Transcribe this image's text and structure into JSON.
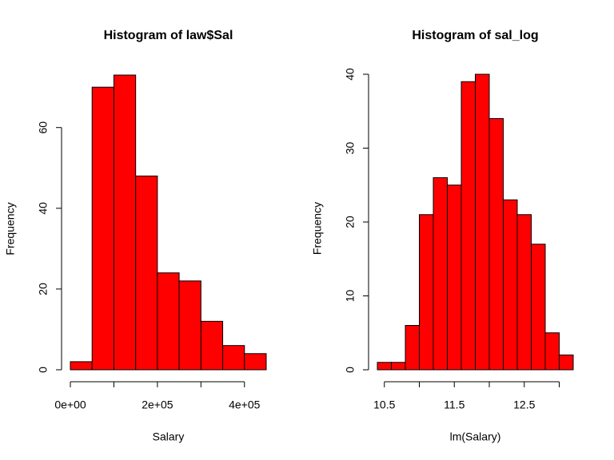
{
  "chart_data": [
    {
      "type": "histogram",
      "title": "Histogram of law$Sal",
      "xlabel": "Salary",
      "ylabel": "Frequency",
      "bins": [
        0,
        50000,
        100000,
        150000,
        200000,
        250000,
        300000,
        350000,
        400000,
        450000
      ],
      "values": [
        2,
        70,
        73,
        48,
        24,
        22,
        12,
        6,
        4
      ],
      "color": "#ff0000",
      "xlim": [
        0,
        450000
      ],
      "ylim": [
        0,
        73
      ],
      "xticks": [
        {
          "value": 0,
          "label": "0e+00"
        },
        {
          "value": 100000,
          "label": null
        },
        {
          "value": 200000,
          "label": "2e+05"
        },
        {
          "value": 300000,
          "label": null
        },
        {
          "value": 400000,
          "label": "4e+05"
        }
      ],
      "yticks": [
        0,
        20,
        40,
        60
      ]
    },
    {
      "type": "histogram",
      "title": "Histogram of sal_log",
      "xlabel": "lm(Salary)",
      "ylabel": "Frequency",
      "bins": [
        10.4,
        10.6,
        10.8,
        11.0,
        11.2,
        11.4,
        11.6,
        11.8,
        12.0,
        12.2,
        12.4,
        12.6,
        12.8,
        13.0,
        13.2
      ],
      "values": [
        1,
        1,
        6,
        21,
        26,
        25,
        39,
        40,
        34,
        23,
        21,
        17,
        5,
        2
      ],
      "color": "#ff0000",
      "xlim": [
        10.4,
        13.2
      ],
      "ylim": [
        0,
        40
      ],
      "xticks": [
        10.5,
        {
          "value": 11,
          "label": null
        },
        11.5,
        {
          "value": 12,
          "label": null
        },
        12.5,
        {
          "value": 13,
          "label": null
        }
      ],
      "yticks": [
        0,
        10,
        20,
        30,
        40
      ]
    }
  ]
}
